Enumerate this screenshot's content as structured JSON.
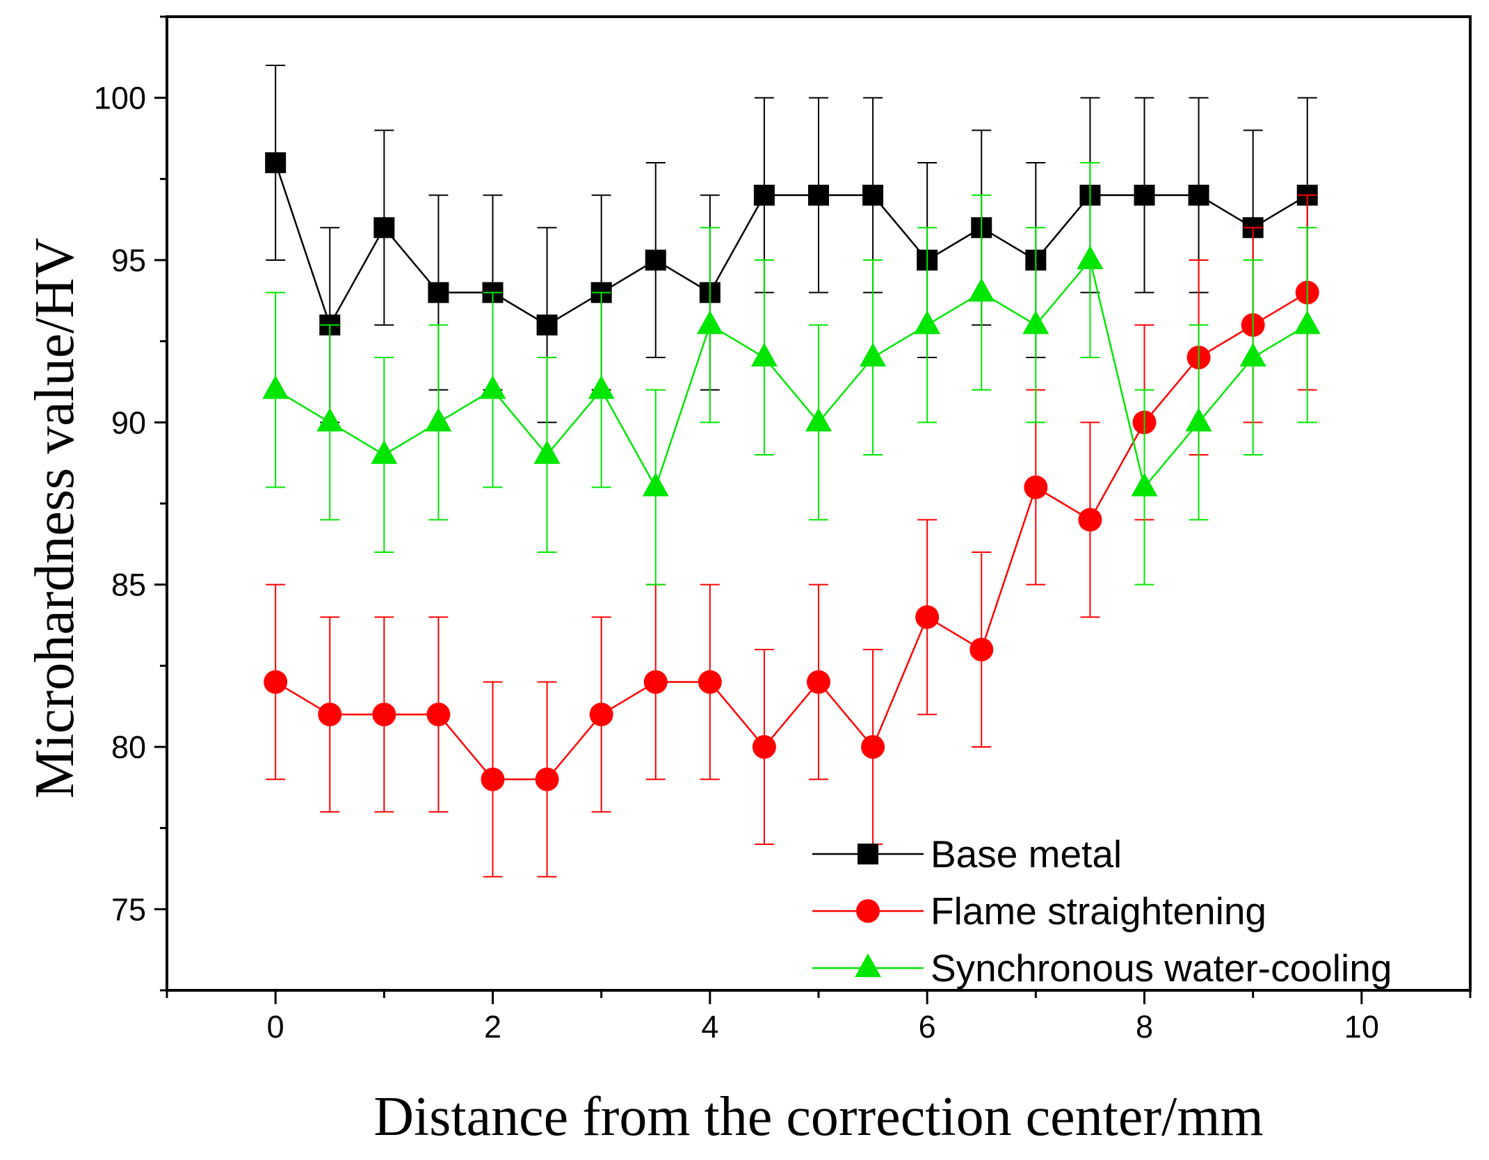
{
  "chart_data": {
    "type": "line",
    "title": "",
    "xlabel": "Distance from the correction center/mm",
    "ylabel": "Microhardness value/HV",
    "xlim": [
      -1,
      11
    ],
    "ylim": [
      72.5,
      102.5
    ],
    "xticks": [
      0,
      2,
      4,
      6,
      8,
      10
    ],
    "xtick_labels": [
      "0",
      "2",
      "4",
      "6",
      "8",
      "10"
    ],
    "yticks": [
      75,
      80,
      85,
      90,
      95,
      100
    ],
    "ytick_labels": [
      "75",
      "80",
      "85",
      "90",
      "95",
      "100"
    ],
    "grid": false,
    "legend_position": "bottom-right",
    "x": [
      0,
      0.5,
      1,
      1.5,
      2,
      2.5,
      3,
      3.5,
      4,
      4.5,
      5,
      5.5,
      6,
      6.5,
      7,
      7.5,
      8,
      8.5,
      9,
      9.5
    ],
    "series": [
      {
        "name": "Base metal",
        "color": "#000000",
        "marker": "square",
        "values": [
          98,
          93,
          96,
          94,
          94,
          93,
          94,
          95,
          94,
          97,
          97,
          97,
          95,
          96,
          95,
          97,
          97,
          97,
          96,
          97
        ],
        "error": [
          3,
          3,
          3,
          3,
          3,
          3,
          3,
          3,
          3,
          3,
          3,
          3,
          3,
          3,
          3,
          3,
          3,
          3,
          3,
          3
        ]
      },
      {
        "name": "Flame straightening",
        "color": "#ff0000",
        "marker": "circle",
        "values": [
          82,
          81,
          81,
          81,
          79,
          79,
          81,
          82,
          82,
          80,
          82,
          80,
          84,
          83,
          88,
          87,
          90,
          92,
          93,
          94
        ],
        "error": [
          3,
          3,
          3,
          3,
          3,
          3,
          3,
          3,
          3,
          3,
          3,
          3,
          3,
          3,
          3,
          3,
          3,
          3,
          3,
          3
        ]
      },
      {
        "name": "Synchronous water-cooling",
        "color": "#00e600",
        "marker": "triangle",
        "values": [
          91,
          90,
          89,
          90,
          91,
          89,
          91,
          88,
          93,
          92,
          90,
          92,
          93,
          94,
          93,
          95,
          88,
          90,
          92,
          93
        ],
        "error": [
          3,
          3,
          3,
          3,
          3,
          3,
          3,
          3,
          3,
          3,
          3,
          3,
          3,
          3,
          3,
          3,
          3,
          3,
          3,
          3
        ]
      }
    ]
  }
}
